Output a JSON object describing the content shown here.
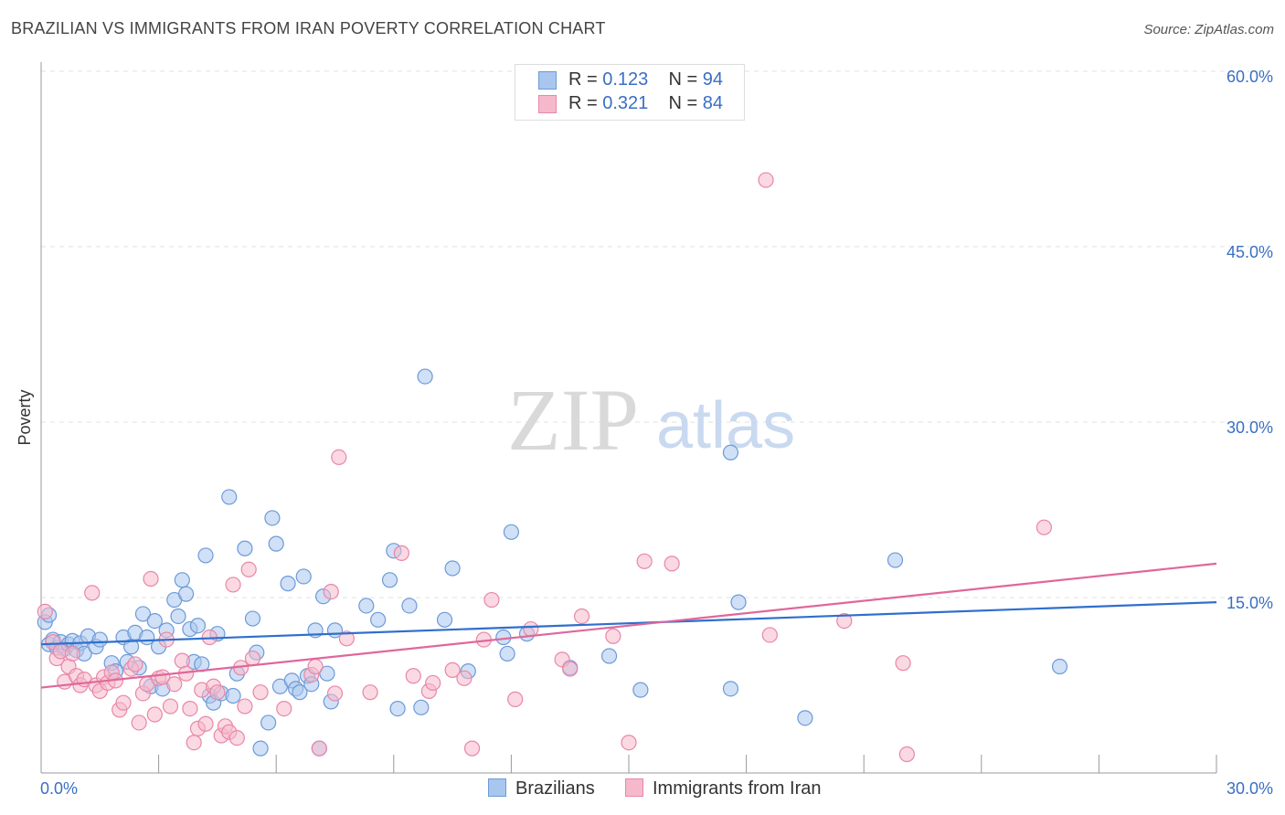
{
  "title": "BRAZILIAN VS IMMIGRANTS FROM IRAN POVERTY CORRELATION CHART",
  "source": "Source: ZipAtlas.com",
  "watermark": {
    "zip": "ZIP",
    "atlas": "atlas"
  },
  "stats": [
    {
      "r_label": "R = ",
      "r_value": "0.123",
      "n_label": "N = ",
      "n_value": "94"
    },
    {
      "r_label": "R = ",
      "r_value": "0.321",
      "n_label": "N = ",
      "n_value": "84"
    }
  ],
  "legend": {
    "brazilians": "Brazilians",
    "iran": "Immigrants from Iran"
  },
  "colors": {
    "brazilians_fill": "#a9c6ee",
    "brazilians_stroke": "#6c9ad8",
    "brazilians_line": "#2f6fcd",
    "iran_fill": "#f6b9cc",
    "iran_stroke": "#e986a7",
    "iran_line": "#e0679a",
    "tick_label": "#3a6fc4",
    "grid": "#e2e2e2"
  },
  "chart_data": {
    "type": "scatter",
    "title": "BRAZILIAN VS IMMIGRANTS FROM IRAN POVERTY CORRELATION CHART",
    "xlabel": "",
    "ylabel": "Poverty",
    "xlim": [
      0,
      30
    ],
    "ylim": [
      0,
      60
    ],
    "x_tick_labels": [
      "0.0%",
      "30.0%"
    ],
    "y_ticks": [
      15,
      30,
      45,
      60
    ],
    "y_tick_labels": [
      "15.0%",
      "30.0%",
      "45.0%",
      "60.0%"
    ],
    "grid": "horizontal dashed",
    "legend_position": "bottom-center",
    "series": [
      {
        "name": "Brazilians",
        "r": 0.123,
        "n": 94,
        "trend": [
          [
            0,
            11.0
          ],
          [
            30,
            14.6
          ]
        ],
        "points": [
          [
            0.1,
            12.9
          ],
          [
            0.2,
            11.0
          ],
          [
            0.3,
            11.4
          ],
          [
            0.4,
            10.7
          ],
          [
            0.5,
            11.2
          ],
          [
            0.6,
            10.6
          ],
          [
            0.7,
            11.0
          ],
          [
            0.8,
            11.3
          ],
          [
            0.9,
            10.5
          ],
          [
            1.0,
            11.1
          ],
          [
            1.1,
            10.2
          ],
          [
            1.2,
            11.7
          ],
          [
            1.4,
            10.8
          ],
          [
            1.5,
            11.4
          ],
          [
            1.8,
            9.4
          ],
          [
            1.9,
            8.7
          ],
          [
            2.1,
            11.6
          ],
          [
            2.2,
            9.5
          ],
          [
            2.3,
            10.8
          ],
          [
            2.4,
            12.0
          ],
          [
            2.5,
            9.0
          ],
          [
            2.6,
            13.6
          ],
          [
            2.7,
            11.6
          ],
          [
            2.8,
            7.4
          ],
          [
            2.9,
            13.0
          ],
          [
            3.0,
            10.8
          ],
          [
            3.1,
            7.2
          ],
          [
            3.2,
            12.2
          ],
          [
            3.4,
            14.8
          ],
          [
            3.5,
            13.4
          ],
          [
            3.6,
            16.5
          ],
          [
            3.7,
            15.3
          ],
          [
            3.8,
            12.3
          ],
          [
            3.9,
            9.5
          ],
          [
            4.0,
            12.6
          ],
          [
            4.1,
            9.3
          ],
          [
            4.2,
            18.6
          ],
          [
            4.3,
            6.6
          ],
          [
            4.4,
            6.0
          ],
          [
            4.5,
            11.9
          ],
          [
            4.6,
            6.8
          ],
          [
            4.8,
            23.6
          ],
          [
            4.9,
            6.6
          ],
          [
            5.0,
            8.5
          ],
          [
            5.2,
            19.2
          ],
          [
            5.4,
            13.2
          ],
          [
            5.5,
            10.3
          ],
          [
            5.6,
            2.1
          ],
          [
            5.8,
            4.3
          ],
          [
            5.9,
            21.8
          ],
          [
            6.0,
            19.6
          ],
          [
            6.1,
            7.4
          ],
          [
            6.3,
            16.2
          ],
          [
            6.4,
            7.9
          ],
          [
            6.5,
            7.2
          ],
          [
            6.6,
            6.9
          ],
          [
            6.7,
            16.8
          ],
          [
            6.8,
            8.3
          ],
          [
            6.9,
            7.6
          ],
          [
            7.0,
            12.2
          ],
          [
            7.1,
            2.1
          ],
          [
            7.2,
            15.1
          ],
          [
            7.3,
            8.5
          ],
          [
            7.4,
            6.1
          ],
          [
            7.5,
            12.2
          ],
          [
            8.3,
            14.3
          ],
          [
            8.6,
            13.1
          ],
          [
            8.9,
            16.5
          ],
          [
            9.0,
            19.0
          ],
          [
            9.1,
            5.5
          ],
          [
            9.4,
            14.3
          ],
          [
            9.7,
            5.6
          ],
          [
            9.8,
            33.9
          ],
          [
            10.3,
            13.1
          ],
          [
            10.5,
            17.5
          ],
          [
            10.9,
            8.7
          ],
          [
            11.8,
            11.6
          ],
          [
            11.9,
            10.2
          ],
          [
            12.0,
            20.6
          ],
          [
            12.4,
            11.9
          ],
          [
            13.5,
            9.0
          ],
          [
            14.5,
            10.0
          ],
          [
            15.3,
            7.1
          ],
          [
            17.6,
            27.4
          ],
          [
            17.6,
            7.2
          ],
          [
            17.8,
            14.6
          ],
          [
            19.5,
            4.7
          ],
          [
            21.8,
            18.2
          ],
          [
            26.0,
            9.1
          ],
          [
            0.2,
            13.5
          ]
        ]
      },
      {
        "name": "Immigrants from Iran",
        "r": 0.321,
        "n": 84,
        "trend": [
          [
            0,
            7.3
          ],
          [
            30,
            17.9
          ]
        ],
        "points": [
          [
            0.1,
            13.8
          ],
          [
            0.3,
            11.2
          ],
          [
            0.4,
            9.8
          ],
          [
            0.5,
            10.4
          ],
          [
            0.6,
            7.8
          ],
          [
            0.7,
            9.1
          ],
          [
            0.8,
            10.2
          ],
          [
            0.9,
            8.3
          ],
          [
            1.0,
            7.5
          ],
          [
            1.1,
            8.0
          ],
          [
            1.3,
            15.4
          ],
          [
            1.4,
            7.5
          ],
          [
            1.5,
            7.0
          ],
          [
            1.6,
            8.2
          ],
          [
            1.7,
            7.7
          ],
          [
            1.8,
            8.6
          ],
          [
            1.9,
            7.9
          ],
          [
            2.0,
            5.4
          ],
          [
            2.1,
            6.0
          ],
          [
            2.3,
            8.9
          ],
          [
            2.4,
            9.3
          ],
          [
            2.5,
            4.3
          ],
          [
            2.6,
            6.8
          ],
          [
            2.7,
            7.6
          ],
          [
            2.8,
            16.6
          ],
          [
            2.9,
            5.0
          ],
          [
            3.0,
            8.1
          ],
          [
            3.1,
            8.2
          ],
          [
            3.2,
            11.4
          ],
          [
            3.3,
            5.7
          ],
          [
            3.4,
            7.6
          ],
          [
            3.6,
            9.6
          ],
          [
            3.7,
            8.5
          ],
          [
            3.8,
            5.5
          ],
          [
            3.9,
            2.6
          ],
          [
            4.0,
            3.8
          ],
          [
            4.1,
            7.1
          ],
          [
            4.2,
            4.2
          ],
          [
            4.3,
            11.6
          ],
          [
            4.4,
            7.4
          ],
          [
            4.5,
            6.9
          ],
          [
            4.6,
            3.2
          ],
          [
            4.7,
            4.0
          ],
          [
            4.8,
            3.5
          ],
          [
            4.9,
            16.1
          ],
          [
            5.0,
            3.0
          ],
          [
            5.1,
            9.0
          ],
          [
            5.2,
            5.7
          ],
          [
            5.3,
            17.4
          ],
          [
            5.4,
            9.8
          ],
          [
            5.6,
            6.9
          ],
          [
            6.2,
            5.5
          ],
          [
            6.9,
            8.4
          ],
          [
            7.0,
            9.1
          ],
          [
            7.1,
            2.1
          ],
          [
            7.4,
            15.5
          ],
          [
            7.5,
            6.8
          ],
          [
            7.6,
            27.0
          ],
          [
            7.8,
            11.5
          ],
          [
            8.4,
            6.9
          ],
          [
            9.2,
            18.8
          ],
          [
            9.5,
            8.3
          ],
          [
            9.9,
            7.0
          ],
          [
            10.0,
            7.7
          ],
          [
            10.5,
            8.8
          ],
          [
            10.8,
            8.1
          ],
          [
            11.0,
            2.1
          ],
          [
            11.3,
            11.4
          ],
          [
            11.5,
            14.8
          ],
          [
            12.1,
            6.3
          ],
          [
            12.5,
            12.3
          ],
          [
            13.3,
            9.7
          ],
          [
            13.5,
            8.9
          ],
          [
            13.8,
            13.4
          ],
          [
            14.6,
            11.7
          ],
          [
            15.0,
            2.6
          ],
          [
            15.4,
            18.1
          ],
          [
            16.1,
            17.9
          ],
          [
            18.5,
            50.7
          ],
          [
            18.6,
            11.8
          ],
          [
            20.5,
            13.0
          ],
          [
            22.0,
            9.4
          ],
          [
            22.1,
            1.6
          ],
          [
            25.6,
            21.0
          ]
        ]
      }
    ]
  }
}
